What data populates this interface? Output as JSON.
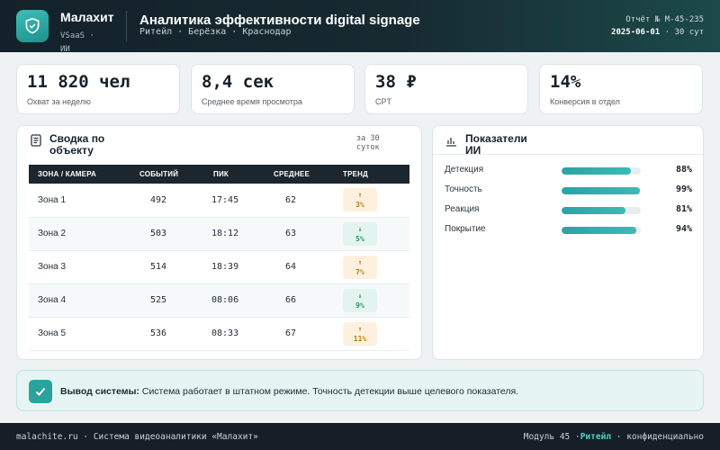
{
  "header": {
    "brand_name": "Малахит",
    "brand_sub": "VSaaS · ИИ",
    "title": "Аналитика эффективности digital signage",
    "subtitle": "Ритейл · Берёзка · Краснодар",
    "report_no": "Отчёт № M-45-235",
    "report_date": "2025-06-01",
    "report_period": " · 30 сут"
  },
  "kpis": [
    {
      "value": "11 820 чел",
      "label": "Охват за неделю"
    },
    {
      "value": "8,4 сек",
      "label": "Среднее время просмотра"
    },
    {
      "value": "38 ₽",
      "label": "CPT"
    },
    {
      "value": "14%",
      "label": "Конверсия в отдел"
    }
  ],
  "summary": {
    "title": "Сводка по объекту",
    "period": "за 30 суток",
    "columns": [
      "ЗОНА / КАМЕРА",
      "СОБЫТИЙ",
      "ПИК",
      "СРЕДНЕЕ",
      "ТРЕНД"
    ],
    "rows": [
      {
        "zone": "Зона 1",
        "events": "492",
        "peak": "17:45",
        "avg": "62",
        "trend_arrow": "↑",
        "trend": "3%",
        "dir": "up"
      },
      {
        "zone": "Зона 2",
        "events": "503",
        "peak": "18:12",
        "avg": "63",
        "trend_arrow": "↓",
        "trend": "5%",
        "dir": "down"
      },
      {
        "zone": "Зона 3",
        "events": "514",
        "peak": "18:39",
        "avg": "64",
        "trend_arrow": "↑",
        "trend": "7%",
        "dir": "up"
      },
      {
        "zone": "Зона 4",
        "events": "525",
        "peak": "08:06",
        "avg": "66",
        "trend_arrow": "↓",
        "trend": "9%",
        "dir": "down"
      },
      {
        "zone": "Зона 5",
        "events": "536",
        "peak": "08:33",
        "avg": "67",
        "trend_arrow": "↑",
        "trend": "11%",
        "dir": "up"
      }
    ]
  },
  "ai": {
    "title": "Показатели ИИ",
    "metrics": [
      {
        "label": "Детекция",
        "value": "88%",
        "level": 0.88
      },
      {
        "label": "Точность",
        "value": "99%",
        "level": 0.99
      },
      {
        "label": "Реакция",
        "value": "81%",
        "level": 0.81
      },
      {
        "label": "Покрытие",
        "value": "94%",
        "level": 0.94
      }
    ]
  },
  "conclusion": {
    "label": "Вывод системы:",
    "text": " Система работает в штатном режиме. Точность детекции выше целевого показателя."
  },
  "footer": {
    "left": "malachite.ru · Система видеоаналитики «Малахит»",
    "module": "Модуль 45 ·",
    "segment": "Ритейл",
    "conf": "· конфиденциально"
  },
  "colors": {
    "accent": "#2aa39d",
    "header_bg": "#14212a",
    "trend_up": "#b97a14",
    "trend_down": "#2e8f6f"
  }
}
